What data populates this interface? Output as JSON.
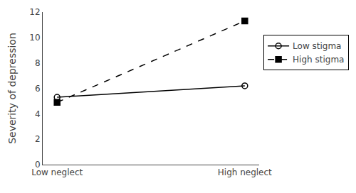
{
  "chart_data": {
    "type": "line",
    "categories": [
      "Low neglect",
      "High neglect"
    ],
    "series": [
      {
        "name": "Low stigma",
        "color": "#000000",
        "values": [
          5.3,
          6.2
        ],
        "line_style": "solid",
        "marker": "circle-open"
      },
      {
        "name": "High stigma",
        "color": "#000000",
        "values": [
          4.9,
          11.3
        ],
        "line_style": "dashed",
        "marker": "square"
      }
    ],
    "ylabel": "Severity of depression",
    "ylim": [
      0,
      12
    ],
    "yticks": [
      0,
      2,
      4,
      6,
      8,
      10,
      12
    ],
    "grid": false,
    "legend": "right"
  }
}
